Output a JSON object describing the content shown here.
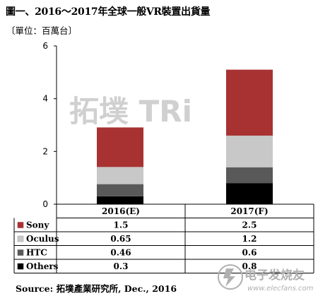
{
  "header": {
    "title": "圖一、2016～2017年全球一般VR裝置出貨量",
    "unit": "〔單位：百萬台〕"
  },
  "watermark": {
    "text": "拓墣 TRi",
    "color": "#c8c8c8"
  },
  "footer": {
    "source": "Source: 拓墣產業研究所, Dec., 2016",
    "logo_text": "电子发烧友",
    "logo_url": "www.elecfans.com"
  },
  "chart_data": {
    "type": "bar",
    "stacked": true,
    "categories": [
      "2016(E)",
      "2017(F)"
    ],
    "ylim": [
      0,
      6
    ],
    "yticks": [
      0,
      2,
      4,
      6
    ],
    "ytick_labels": [
      "0",
      "2",
      "4",
      "6"
    ],
    "grid": false,
    "legend": "table-left",
    "series": [
      {
        "name": "Others",
        "values": [
          0.3,
          0.8
        ],
        "labels": [
          "0.3",
          "0.8"
        ],
        "color": "#000000"
      },
      {
        "name": "HTC",
        "values": [
          0.46,
          0.6
        ],
        "labels": [
          "0.46",
          "0.6"
        ],
        "color": "#595959"
      },
      {
        "name": "Oculus",
        "values": [
          0.65,
          1.2
        ],
        "labels": [
          "0.65",
          "1.2"
        ],
        "color": "#c8c8c8"
      },
      {
        "name": "Sony",
        "values": [
          1.5,
          2.5
        ],
        "labels": [
          "1.5",
          "2.5"
        ],
        "color": "#a83232"
      }
    ],
    "table_order": [
      "Sony",
      "Oculus",
      "HTC",
      "Others"
    ]
  }
}
